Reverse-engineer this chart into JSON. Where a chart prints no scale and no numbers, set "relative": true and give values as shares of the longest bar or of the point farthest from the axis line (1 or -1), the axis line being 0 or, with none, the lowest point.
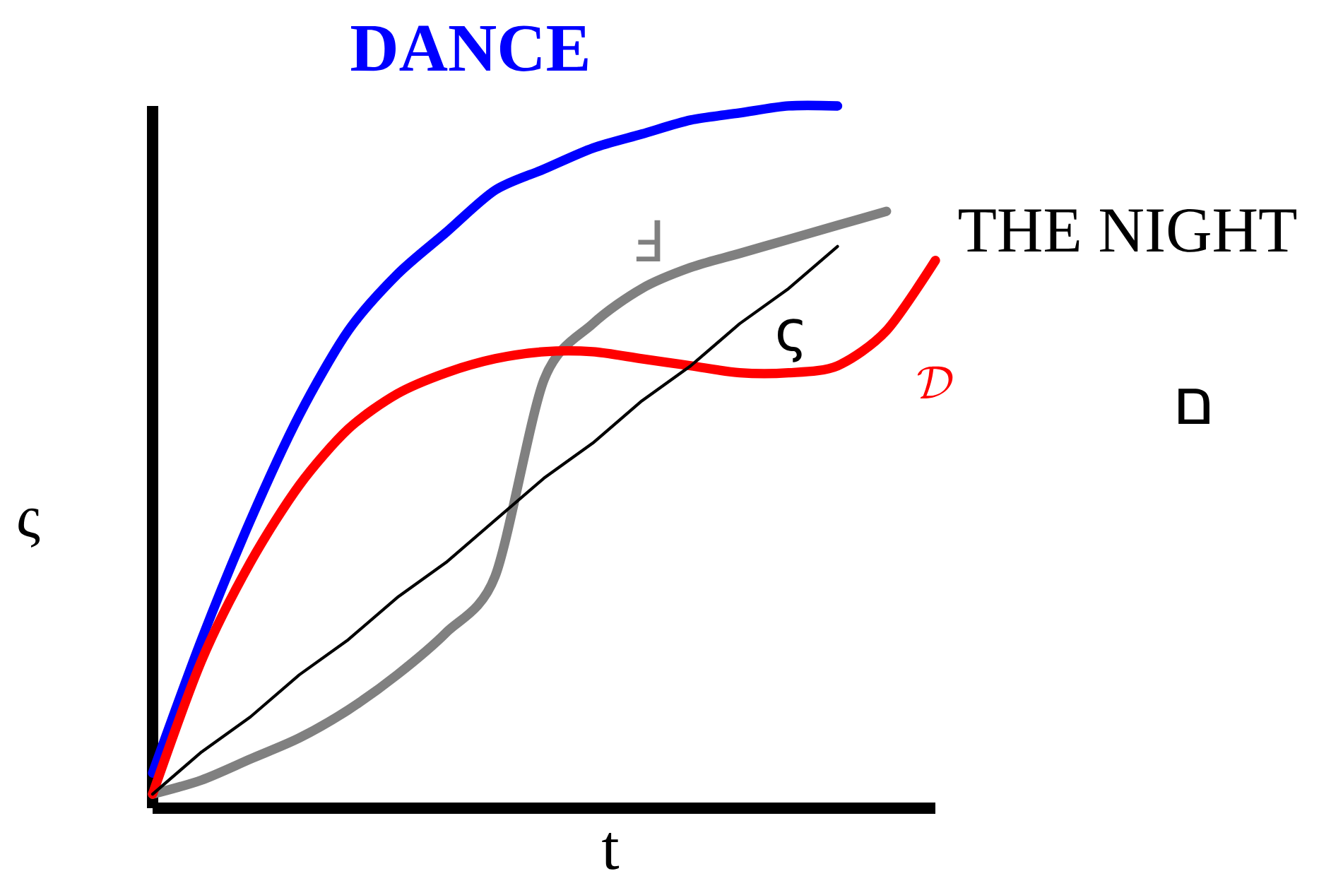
{
  "chart_data": {
    "type": "line",
    "title": "DANCE",
    "xlabel": "t",
    "ylabel": "ς",
    "relative": true,
    "categories": [
      null,
      null,
      null,
      null,
      null,
      null,
      null,
      null,
      null,
      null,
      null,
      null,
      null,
      null,
      null,
      null,
      null
    ],
    "series": [
      {
        "color": "#0000ff",
        "values": [
          0.05,
          0.24,
          0.41,
          0.56,
          0.68,
          0.76,
          0.82,
          0.88,
          0.91,
          0.94,
          0.96,
          0.98,
          0.99,
          1.0,
          1.0,
          null,
          null
        ]
      },
      {
        "name": "Ⅎ",
        "color": "#808080",
        "values": [
          0.02,
          0.04,
          0.07,
          0.1,
          0.14,
          0.19,
          0.25,
          0.33,
          0.61,
          0.69,
          0.74,
          0.77,
          0.79,
          0.81,
          0.83,
          0.85,
          null
        ]
      },
      {
        "name": "\\mathcal{D}",
        "color": "#ff0000",
        "values": [
          0.02,
          0.21,
          0.35,
          0.46,
          0.54,
          0.59,
          0.62,
          0.64,
          0.65,
          0.65,
          0.64,
          0.63,
          0.62,
          0.62,
          0.63,
          0.68,
          0.78
        ]
      },
      {
        "name": "ς",
        "color": "#000000",
        "values": [
          0.02,
          0.08,
          0.13,
          0.19,
          0.24,
          0.3,
          0.35,
          0.41,
          0.47,
          0.52,
          0.58,
          0.63,
          0.69,
          0.74,
          0.8,
          null,
          null
        ]
      }
    ],
    "annotations": [
      "THE NIGHT",
      "ם"
    ]
  }
}
